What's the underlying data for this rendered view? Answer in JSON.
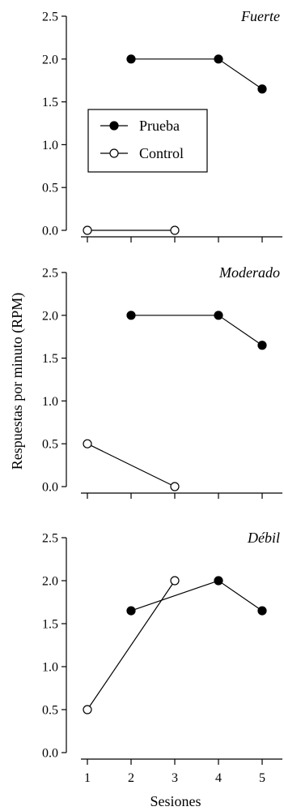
{
  "chart_data": {
    "type": "line",
    "ylabel": "Respuestas por minuto (RPM)",
    "xlabel": "Sesiones",
    "x_ticks": [
      1,
      2,
      3,
      4,
      5
    ],
    "x_tick_labels": [
      "1",
      "2",
      "3",
      "4",
      "5"
    ],
    "xlim": [
      0.5,
      5.5
    ],
    "ylim": [
      0,
      2.5
    ],
    "y_ticks": [
      0,
      0.5,
      1,
      1.5,
      2,
      2.5
    ],
    "y_tick_labels": [
      "0.0",
      "0.5",
      "1.0",
      "1.5",
      "2.0",
      "2.5"
    ],
    "legend": {
      "placement": "upper-left of first panel",
      "entries": [
        {
          "name": "Prueba",
          "marker": "filled-circle"
        },
        {
          "name": "Control",
          "marker": "open-circle"
        }
      ]
    },
    "panels": [
      {
        "title": "Fuerte",
        "series": [
          {
            "name": "Prueba",
            "marker": "filled-circle",
            "x": [
              2,
              4,
              5
            ],
            "values": [
              2.0,
              2.0,
              1.65
            ]
          },
          {
            "name": "Control",
            "marker": "open-circle",
            "x": [
              1,
              3
            ],
            "values": [
              0.0,
              0.0
            ]
          }
        ]
      },
      {
        "title": "Moderado",
        "series": [
          {
            "name": "Prueba",
            "marker": "filled-circle",
            "x": [
              2,
              4,
              5
            ],
            "values": [
              2.0,
              2.0,
              1.65
            ]
          },
          {
            "name": "Control",
            "marker": "open-circle",
            "x": [
              1,
              3
            ],
            "values": [
              0.5,
              0.0
            ]
          }
        ]
      },
      {
        "title": "Débil",
        "series": [
          {
            "name": "Prueba",
            "marker": "filled-circle",
            "x": [
              2,
              4,
              5
            ],
            "values": [
              1.65,
              2.0,
              1.65
            ]
          },
          {
            "name": "Control",
            "marker": "open-circle",
            "x": [
              1,
              3
            ],
            "values": [
              0.5,
              2.0
            ]
          }
        ]
      }
    ],
    "colors": {
      "line": "#000000",
      "filled_marker": "#000000",
      "open_marker_fill": "#ffffff"
    }
  }
}
